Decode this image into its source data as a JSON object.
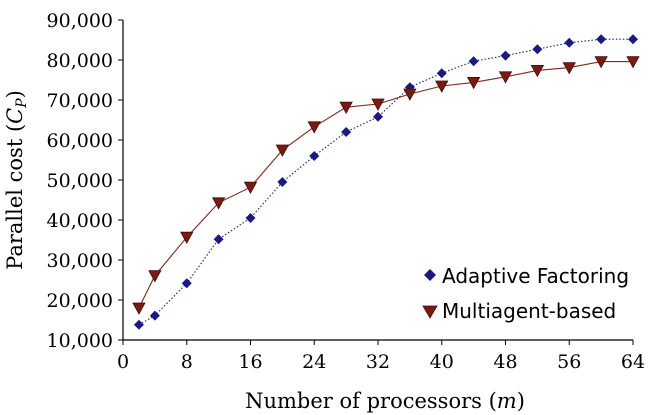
{
  "chart_data": {
    "type": "line",
    "title": "",
    "xlabel": "Number of processors (m)",
    "xlabel_main": "Number of processors (",
    "xlabel_var": "m",
    "xlabel_end": ")",
    "ylabel": "Parallel cost (Cp)",
    "ylabel_main": "Parallel cost (",
    "ylabel_var": "C",
    "ylabel_sub": "P",
    "ylabel_end": ")",
    "xlim": [
      0,
      64
    ],
    "ylim": [
      10000,
      90000
    ],
    "x_ticks": [
      0,
      8,
      16,
      24,
      32,
      40,
      48,
      56,
      64
    ],
    "x_tick_labels": [
      "0",
      "8",
      "16",
      "24",
      "32",
      "40",
      "48",
      "56",
      "64"
    ],
    "y_ticks": [
      10000,
      20000,
      30000,
      40000,
      50000,
      60000,
      70000,
      80000,
      90000
    ],
    "y_tick_labels": [
      "10,000",
      "20,000",
      "30,000",
      "40,000",
      "50,000",
      "60,000",
      "70,000",
      "80,000",
      "90,000"
    ],
    "grid": false,
    "legend_position": "bottom-right",
    "series": [
      {
        "name": "Adaptive Factoring",
        "marker": "diamond",
        "line_style": "dotted",
        "line_color": "#1c1c8a",
        "marker_color": "#1a1a80",
        "x": [
          2,
          4,
          8,
          12,
          16,
          20,
          24,
          28,
          32,
          36,
          40,
          44,
          48,
          52,
          56,
          60,
          64
        ],
        "values": [
          13800,
          16100,
          24200,
          35200,
          40500,
          49500,
          56000,
          62000,
          65800,
          73200,
          76700,
          79700,
          81100,
          82700,
          84300,
          85200,
          85200
        ]
      },
      {
        "name": "Multiagent-based",
        "marker": "triangle-down",
        "line_style": "solid",
        "line_color": "#7a2a1a",
        "marker_color": "#7b1a12",
        "x": [
          2,
          4,
          8,
          12,
          16,
          20,
          24,
          28,
          32,
          36,
          40,
          44,
          48,
          52,
          56,
          60,
          64
        ],
        "values": [
          18000,
          26100,
          35700,
          44300,
          48200,
          57500,
          63300,
          68200,
          69000,
          71500,
          73500,
          74400,
          75800,
          77400,
          78100,
          79600,
          79600
        ]
      }
    ]
  }
}
